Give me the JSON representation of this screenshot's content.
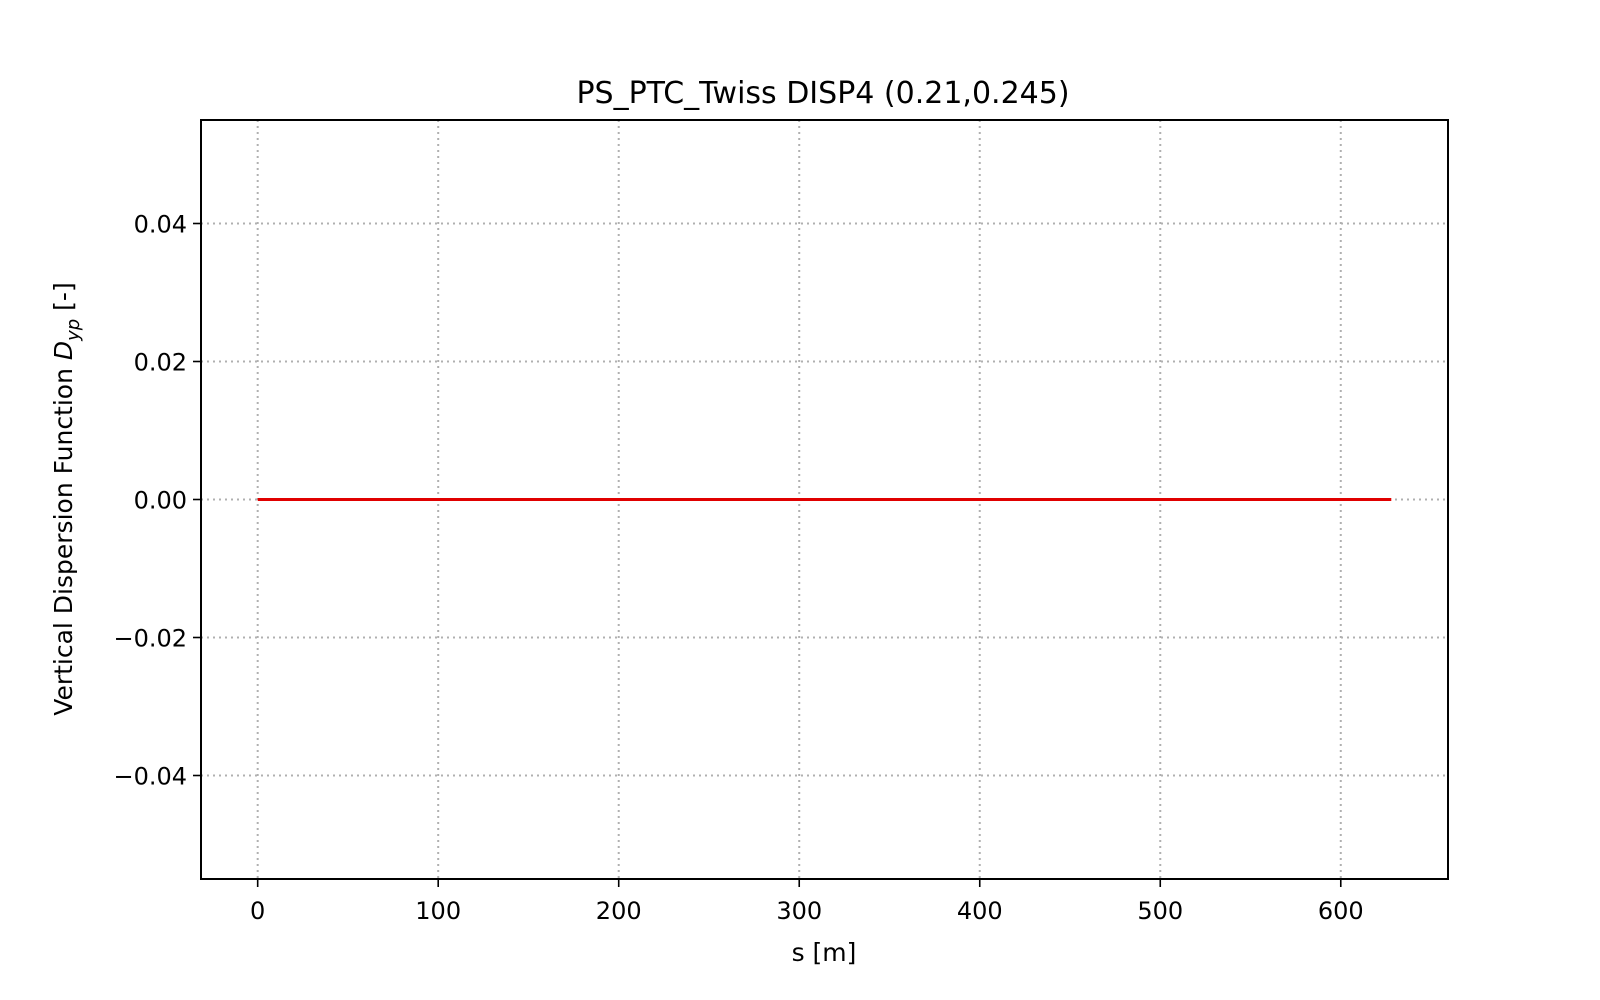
{
  "chart_data": {
    "type": "line",
    "title": "PS_PTC_Twiss DISP4 (0.21,0.245)",
    "xlabel": "s [m]",
    "ylabel": {
      "prefix": "Vertical Dispersion Function ",
      "symbol": "D",
      "subscript": "yp",
      "suffix": " [-]"
    },
    "xlim": [
      -31.4,
      659.4
    ],
    "ylim": [
      -0.055,
      0.055
    ],
    "x_ticks": [
      0,
      100,
      200,
      300,
      400,
      500,
      600
    ],
    "x_tick_labels": [
      "0",
      "100",
      "200",
      "300",
      "400",
      "500",
      "600"
    ],
    "y_ticks": [
      -0.04,
      -0.02,
      0.0,
      0.02,
      0.04
    ],
    "y_tick_labels": [
      "−0.04",
      "−0.02",
      "0.00",
      "0.02",
      "0.04"
    ],
    "grid": true,
    "series": [
      {
        "color": "#e00000",
        "x": [
          0,
          100,
          200,
          300,
          400,
          500,
          600,
          628
        ],
        "y": [
          0,
          0,
          0,
          0,
          0,
          0,
          0,
          0
        ]
      }
    ]
  }
}
